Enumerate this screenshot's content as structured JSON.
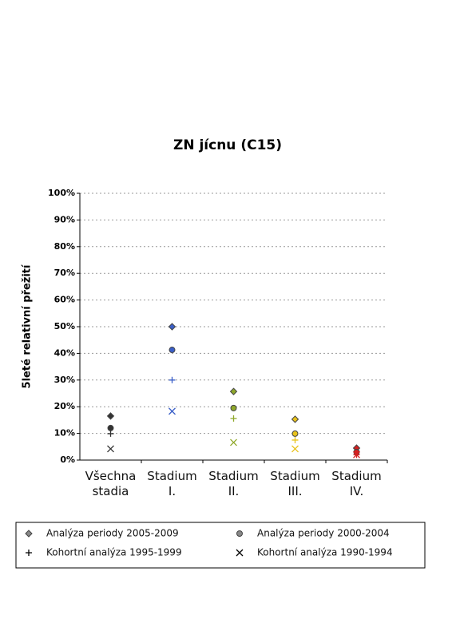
{
  "chart_data": {
    "type": "scatter",
    "title": "ZN jícnu (C15)",
    "y_label": "5leté relativní přežití",
    "categories": [
      "Všechna stadia",
      "Stadium I.",
      "Stadium II.",
      "Stadium III.",
      "Stadium IV."
    ],
    "category_colors": [
      "#333333",
      "#3a5fc8",
      "#8fa82a",
      "#e8c21a",
      "#d42020"
    ],
    "series": [
      {
        "name": "Analýza periody 2005-2009",
        "marker": "diamond",
        "color": "#888888",
        "values": [
          16.5,
          50,
          25.7,
          15.3,
          4.5
        ]
      },
      {
        "name": "Analýza periody 2000-2004",
        "marker": "circle",
        "color": "#888888",
        "values": [
          12,
          41.3,
          19.5,
          9.9,
          3
        ]
      },
      {
        "name": "Kohortní analýza 1995-1999",
        "marker": "plus",
        "color": "#000000",
        "values": [
          9.9,
          30,
          15.6,
          7.5,
          2
        ]
      },
      {
        "name": "Kohortní analýza 1990-1994",
        "marker": "x",
        "color": "#000000",
        "values": [
          4.2,
          18.3,
          6.6,
          4.2,
          2
        ]
      }
    ],
    "ylim": [
      0,
      100
    ],
    "yticks": [
      {
        "value": 0,
        "label": "0%"
      },
      {
        "value": 10,
        "label": "10%"
      },
      {
        "value": 20,
        "label": "20%"
      },
      {
        "value": 30,
        "label": "30%"
      },
      {
        "value": 40,
        "label": "40%"
      },
      {
        "value": 50,
        "label": "50%"
      },
      {
        "value": 60,
        "label": "60%"
      },
      {
        "value": 70,
        "label": "70%"
      },
      {
        "value": 80,
        "label": "80%"
      },
      {
        "value": 90,
        "label": "90%"
      },
      {
        "value": 100,
        "label": "100%"
      }
    ],
    "grid": true
  }
}
